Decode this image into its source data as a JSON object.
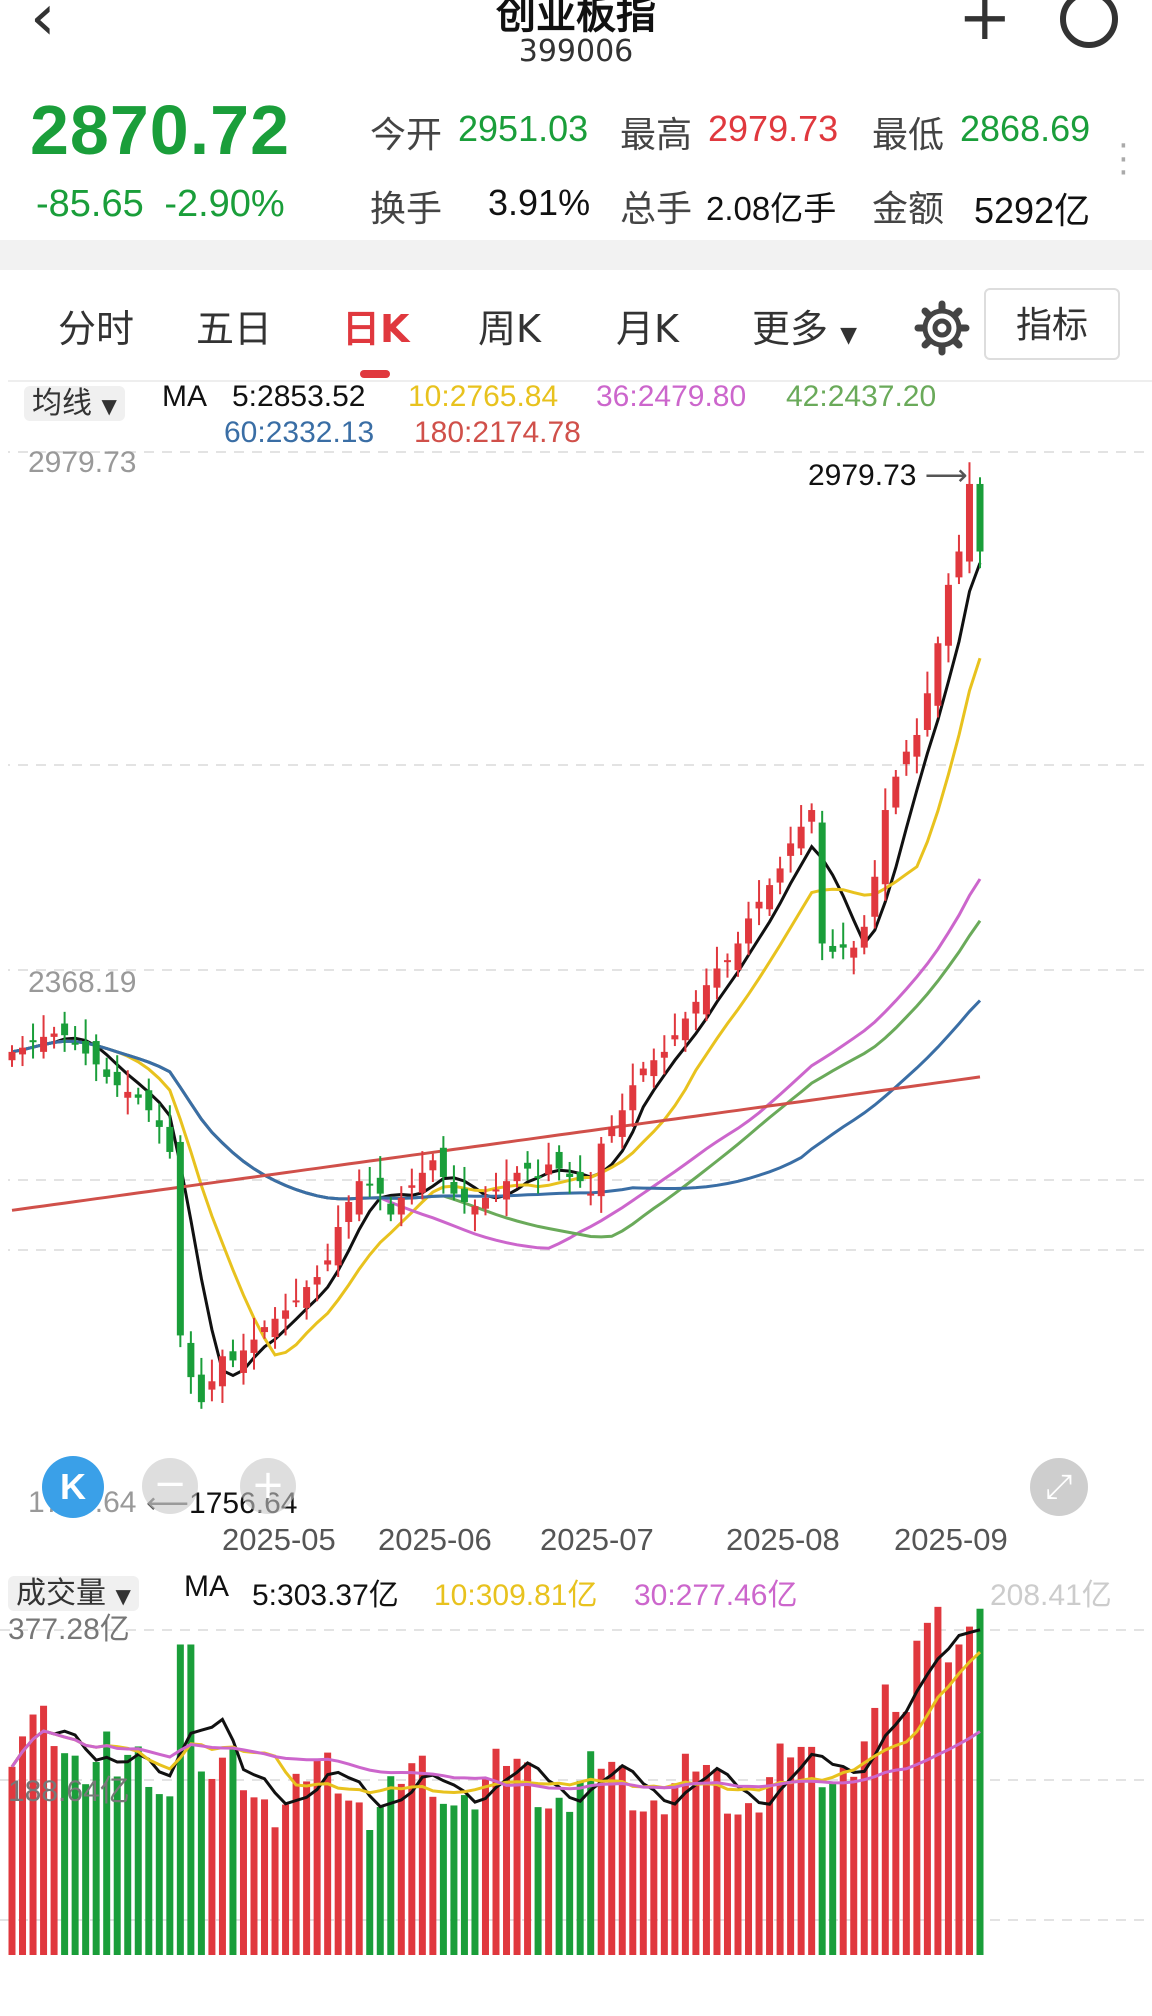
{
  "header": {
    "title": "创业板指",
    "code": "399006",
    "back_icon": "chevron-left-icon",
    "add_icon": "plus-icon",
    "search_icon": "search-icon"
  },
  "quote": {
    "price": "2870.72",
    "change": "-85.65",
    "change_pct": "-2.90%",
    "stats": [
      {
        "label": "今开",
        "value": "2951.03",
        "color": "#1a9e3a"
      },
      {
        "label": "最高",
        "value": "2979.73",
        "color": "#e0383e"
      },
      {
        "label": "最低",
        "value": "2868.69",
        "color": "#1a9e3a"
      },
      {
        "label": "换手",
        "value": "3.91%",
        "color": "#111111"
      },
      {
        "label": "总手",
        "value": "2.08亿手",
        "color": "#111111"
      },
      {
        "label": "金额",
        "value": "5292亿",
        "color": "#111111"
      }
    ]
  },
  "tabs": [
    "分时",
    "五日",
    "日K",
    "周K",
    "月K",
    "更多"
  ],
  "active_tab": "日K",
  "indicator_button": "指标",
  "price_panel": {
    "selector": "均线",
    "ma_label": "MA",
    "ma": [
      {
        "text": "5:2853.52",
        "color": "#111111"
      },
      {
        "text": "10:2765.84",
        "color": "#e8c21e"
      },
      {
        "text": "36:2479.80",
        "color": "#cc66cc"
      },
      {
        "text": "42:2437.20",
        "color": "#6aaa5a"
      },
      {
        "text": "60:2332.13",
        "color": "#3a6ea5"
      },
      {
        "text": "180:2174.78",
        "color": "#d0504a"
      }
    ],
    "y_top": "2979.73",
    "y_mid": "2368.19",
    "y_bottom": "1756.64",
    "high_marker": "2979.73",
    "low_marker": "1756.64",
    "x_labels": [
      "2025-05",
      "2025-06",
      "2025-07",
      "2025-08",
      "2025-09"
    ]
  },
  "volume_panel": {
    "selector": "成交量",
    "ma_label": "MA",
    "ma": [
      {
        "text": "5:303.37亿",
        "color": "#111111"
      },
      {
        "text": "10:309.81亿",
        "color": "#e8c21e"
      },
      {
        "text": "30:277.46亿",
        "color": "#cc66cc"
      }
    ],
    "y_top": "377.28亿",
    "y_mid": "188.64亿",
    "right_label": "208.41亿"
  },
  "chart_data": {
    "type": "candlestick",
    "y_range": [
      1756.64,
      2979.73
    ],
    "close_approx": [
      2270,
      2275,
      2282,
      2288,
      2292,
      2290,
      2280,
      2268,
      2255,
      2240,
      2230,
      2222,
      2215,
      2200,
      2180,
      2150,
      1930,
      1880,
      1850,
      1875,
      1905,
      1900,
      1912,
      1925,
      1940,
      1950,
      1960,
      1972,
      1988,
      2000,
      2020,
      2060,
      2090,
      2115,
      2110,
      2100,
      2075,
      2095,
      2110,
      2125,
      2140,
      2120,
      2100,
      2090,
      2085,
      2095,
      2105,
      2115,
      2125,
      2130,
      2120,
      2135,
      2130,
      2120,
      2115,
      2100,
      2160,
      2180,
      2200,
      2230,
      2250,
      2260,
      2270,
      2290,
      2310,
      2330,
      2350,
      2370,
      2380,
      2400,
      2430,
      2450,
      2470,
      2490,
      2520,
      2540,
      2560,
      2400,
      2390,
      2395,
      2395,
      2420,
      2480,
      2560,
      2600,
      2630,
      2650,
      2700,
      2760,
      2830,
      2870,
      2951,
      2870
    ],
    "volume_range": [
      0,
      377.28
    ]
  },
  "colors": {
    "up": "#e0383e",
    "down": "#1a9e3a"
  }
}
